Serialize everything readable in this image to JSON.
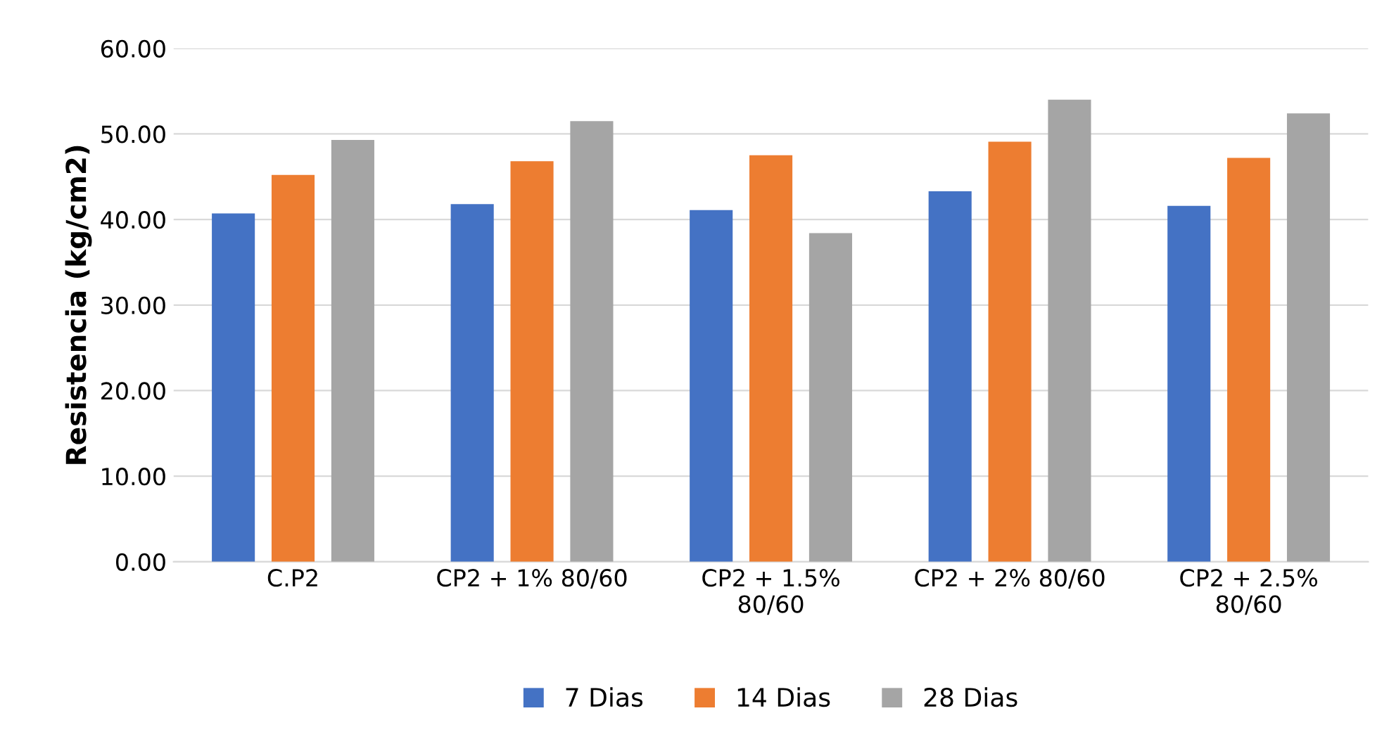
{
  "chart_data": {
    "type": "bar",
    "ylabel": "Resistencia (kg/cm2)",
    "categories": [
      "C.P2",
      "CP2 + 1% 80/60",
      "CP2 + 1.5%\n80/60",
      "CP2 + 2% 80/60",
      "CP2 + 2.5%\n80/60"
    ],
    "series": [
      {
        "name": "7 Dias",
        "color": "#4472c4",
        "values": [
          40.7,
          41.8,
          41.1,
          43.3,
          41.6
        ]
      },
      {
        "name": "14 Dias",
        "color": "#ed7d31",
        "values": [
          45.2,
          46.8,
          47.5,
          49.1,
          47.2
        ]
      },
      {
        "name": "28 Dias",
        "color": "#a5a5a5",
        "values": [
          49.3,
          51.5,
          38.4,
          54.0,
          52.4
        ]
      }
    ],
    "ylim": [
      0,
      60
    ],
    "yticks": [
      {
        "value": 0,
        "label": "0.00"
      },
      {
        "value": 10,
        "label": "10.00"
      },
      {
        "value": 20,
        "label": "20.00"
      },
      {
        "value": 30,
        "label": "30.00"
      },
      {
        "value": 40,
        "label": "40.00"
      },
      {
        "value": 50,
        "label": "50.00"
      },
      {
        "value": 60,
        "label": "60.00"
      }
    ],
    "grid": "y",
    "legend": "bottom"
  }
}
